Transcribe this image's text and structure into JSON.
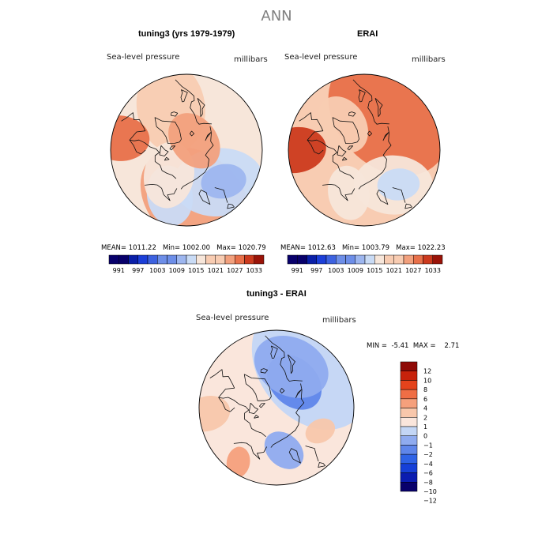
{
  "page_title": "ANN",
  "colors": {
    "scale": [
      "#08006b",
      "#0a1fa8",
      "#1c3fd8",
      "#3d62e0",
      "#6d8ee8",
      "#9db6ef",
      "#c9dbf5",
      "#f7e6da",
      "#f8ccb2",
      "#f2a07d",
      "#e8704a",
      "#cc3a1e",
      "#9a1308"
    ],
    "diff_scale": [
      "#08006b",
      "#0a1cb0",
      "#1640d8",
      "#2f63e6",
      "#5f86ea",
      "#8fabef",
      "#c3d6f5",
      "#fae6dc",
      "#f8c7ab",
      "#f5a07c",
      "#ef6e45",
      "#e4431c",
      "#c7220b",
      "#8f0a06"
    ],
    "coast": "#111111"
  },
  "chart_data": [
    {
      "type": "polar-contour-map",
      "panel": "model",
      "title": "tuning3 (yrs 1979-1979)",
      "field_label": "Sea-level pressure",
      "units_label": "millibars",
      "mean_label": "MEAN=",
      "mean": "1011.22",
      "min_label": "Min=",
      "min": "1002.00",
      "max_label": "Max=",
      "max": "1020.79",
      "colorbar_ticks": [
        "991",
        "997",
        "1003",
        "1009",
        "1015",
        "1021",
        "1027",
        "1033"
      ],
      "colorbar_levels": [
        988,
        991,
        994,
        997,
        1000,
        1003,
        1006,
        1009,
        1012,
        1015,
        1018,
        1021,
        1024,
        1027,
        1030,
        1033,
        1036
      ],
      "blobs": [
        {
          "v": 1015,
          "lat": 57,
          "lon": 170,
          "r": 40
        },
        {
          "v": 1012,
          "lat": 60,
          "lon": 340,
          "r": 30
        },
        {
          "v": 1006,
          "lat": 60,
          "lon": 135,
          "r": 30
        },
        {
          "v": 1003,
          "lat": 58,
          "lon": 130,
          "r": 15
        },
        {
          "v": 1006,
          "lat": 58,
          "lon": 200,
          "r": 20
        },
        {
          "v": 1009,
          "lat": 70,
          "lon": 215,
          "r": 22
        },
        {
          "v": 1015,
          "lat": 82,
          "lon": 40,
          "r": 20
        },
        {
          "v": 1018,
          "lat": 45,
          "lon": 280,
          "r": 20
        }
      ]
    },
    {
      "type": "polar-contour-map",
      "panel": "reanalysis",
      "title": "ERAI",
      "field_label": "Sea-level pressure",
      "units_label": "millibars",
      "mean_label": "MEAN=",
      "mean": "1012.63",
      "min_label": "Min=",
      "min": "1003.79",
      "max_label": "Max=",
      "max": "1022.23",
      "colorbar_ticks": [
        "991",
        "997",
        "1003",
        "1009",
        "1015",
        "1021",
        "1027",
        "1033"
      ],
      "colorbar_levels": [
        988,
        991,
        994,
        997,
        1000,
        1003,
        1006,
        1009,
        1012,
        1015,
        1018,
        1021,
        1024,
        1027,
        1030,
        1033,
        1036
      ],
      "blobs": [
        {
          "v": 1018,
          "lat": 62,
          "lon": 35,
          "r": 45
        },
        {
          "v": 1021,
          "lat": 45,
          "lon": 270,
          "r": 20
        },
        {
          "v": 1009,
          "lat": 60,
          "lon": 140,
          "r": 26
        },
        {
          "v": 1006,
          "lat": 58,
          "lon": 135,
          "r": 14
        },
        {
          "v": 1009,
          "lat": 60,
          "lon": 200,
          "r": 18
        },
        {
          "v": 1012,
          "lat": 68,
          "lon": 320,
          "r": 20
        }
      ]
    },
    {
      "type": "polar-contour-map",
      "panel": "difference",
      "title": "tuning3 - ERAI",
      "field_label": "Sea-level pressure",
      "units_label": "millibars",
      "min_label": "MIN =",
      "min": "-5.41",
      "max_label": "MAX =",
      "max": "2.71",
      "colorbar_ticks": [
        "12",
        "10",
        "8",
        "6",
        "4",
        "2",
        "1",
        "0",
        "−1",
        "−2",
        "−4",
        "−6",
        "−8",
        "−10",
        "−12"
      ],
      "colorbar_levels": [
        -14,
        -12,
        -10,
        -8,
        -6,
        -4,
        -2,
        -1,
        0,
        1,
        2,
        4,
        6,
        8,
        10,
        12,
        14
      ],
      "blobs": [
        {
          "v": -1.5,
          "lat": 55,
          "lon": 40,
          "r": 45
        },
        {
          "v": -4.5,
          "lat": 70,
          "lon": 35,
          "r": 20
        },
        {
          "v": -3,
          "lat": 62,
          "lon": 20,
          "r": 25
        },
        {
          "v": 0.5,
          "lat": 45,
          "lon": 265,
          "r": 15
        },
        {
          "v": 1.5,
          "lat": 47,
          "lon": 215,
          "r": 10
        },
        {
          "v": -2.5,
          "lat": 62,
          "lon": 170,
          "r": 14
        },
        {
          "v": 0.5,
          "lat": 58,
          "lon": 118,
          "r": 10
        }
      ]
    }
  ]
}
